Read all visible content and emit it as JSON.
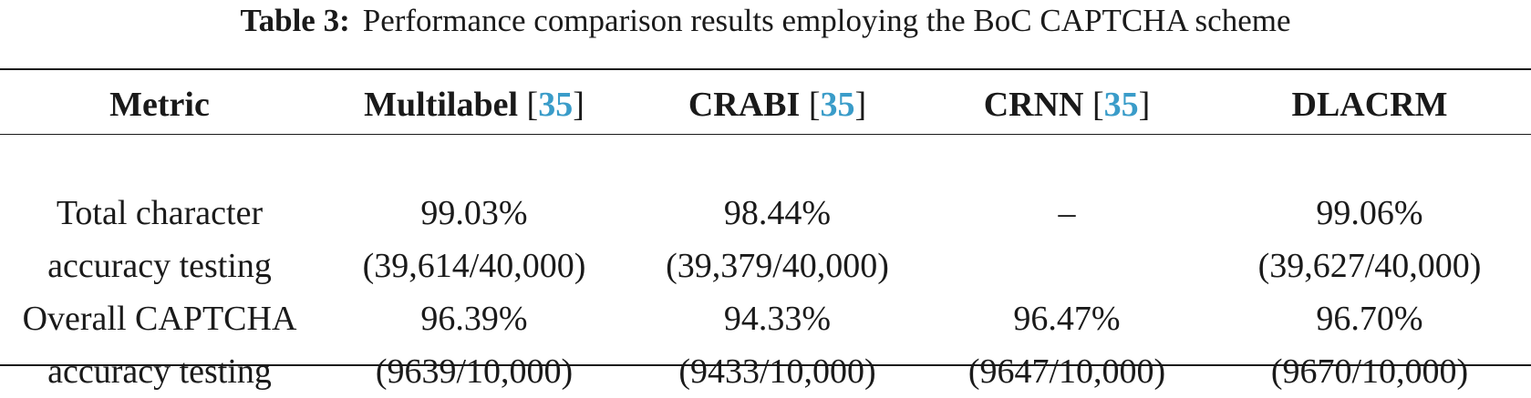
{
  "caption": {
    "label": "Table 3:",
    "text": "Performance comparison results employing the BoC CAPTCHA scheme"
  },
  "table": {
    "columns": [
      {
        "name": "Metric",
        "ref": ""
      },
      {
        "name": "Multilabel",
        "ref": "35"
      },
      {
        "name": "CRABI",
        "ref": "35"
      },
      {
        "name": "CRNN",
        "ref": "35"
      },
      {
        "name": "DLACRM",
        "ref": ""
      }
    ],
    "rows": [
      {
        "metric": [
          "Total character",
          "accuracy testing"
        ],
        "multilabel": [
          "99.03%",
          "(39,614/40,000)"
        ],
        "crabi": [
          "98.44%",
          "(39,379/40,000)"
        ],
        "crnn": [
          "–",
          ""
        ],
        "dlacrm": [
          "99.06%",
          "(39,627/40,000)"
        ]
      },
      {
        "metric": [
          "Overall CAPTCHA",
          "accuracy testing"
        ],
        "multilabel": [
          "96.39%",
          "(9639/10,000)"
        ],
        "crabi": [
          "94.33%",
          "(9433/10,000)"
        ],
        "crnn": [
          "96.47%",
          "(9647/10,000)"
        ],
        "dlacrm": [
          "96.70%",
          "(9670/10,000)"
        ]
      }
    ]
  },
  "colors": {
    "text": "#1a1a1a",
    "reference_link": "#3a9cc9"
  }
}
